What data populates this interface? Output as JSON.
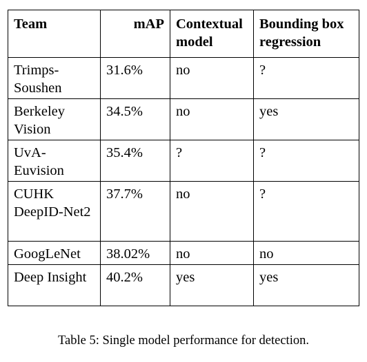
{
  "table": {
    "headers": {
      "team": "Team",
      "map": "mAP",
      "contextual": "Contextual model",
      "bbox": "Bounding box regression"
    },
    "rows": [
      {
        "team": "Trimps-Soushen",
        "map": "31.6%",
        "contextual": "no",
        "bbox": "?"
      },
      {
        "team": "Berkeley Vision",
        "map": "34.5%",
        "contextual": "no",
        "bbox": "yes"
      },
      {
        "team": "UvA-Euvision",
        "map": "35.4%",
        "contextual": "?",
        "bbox": "?"
      },
      {
        "team": "CUHK DeepID-Net2",
        "map": "37.7%",
        "contextual": "no",
        "bbox": "?"
      },
      {
        "team": "GoogLeNet",
        "map": "38.02%",
        "contextual": "no",
        "bbox": "no"
      },
      {
        "team": "Deep Insight",
        "map": "40.2%",
        "contextual": "yes",
        "bbox": "yes"
      }
    ]
  },
  "caption": "Table 5: Single model performance for detection."
}
